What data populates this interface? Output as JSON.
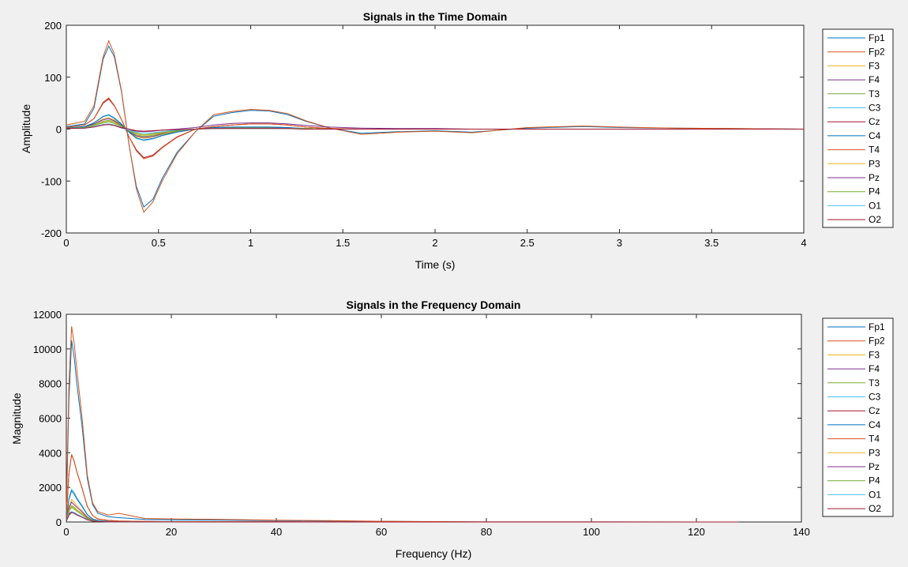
{
  "colors": {
    "background": "#f0f0f0",
    "axes_background": "#ffffff",
    "palette": [
      "#0072bd",
      "#d95319",
      "#edb120",
      "#7e2f8e",
      "#77ac30",
      "#4dbeee",
      "#a2142f"
    ]
  },
  "chart_data": [
    {
      "type": "line",
      "title": "Signals in the Time Domain",
      "xlabel": "Time (s)",
      "ylabel": "Amplitude",
      "xlim": [
        0,
        4
      ],
      "ylim": [
        -200,
        200
      ],
      "xticks": [
        0,
        0.5,
        1,
        1.5,
        2,
        2.5,
        3,
        3.5,
        4
      ],
      "yticks": [
        -200,
        -100,
        0,
        100,
        200
      ],
      "xtick_labels": [
        "0",
        "0.5",
        "1",
        "1.5",
        "2",
        "2.5",
        "3",
        "3.5",
        "4"
      ],
      "ytick_labels": [
        "-200",
        "-100",
        "0",
        "100",
        "200"
      ],
      "grid": false,
      "legend_position": "outside-right",
      "x": [
        0,
        0.1,
        0.15,
        0.2,
        0.23,
        0.26,
        0.3,
        0.34,
        0.38,
        0.42,
        0.47,
        0.52,
        0.6,
        0.7,
        0.8,
        0.9,
        1.0,
        1.1,
        1.2,
        1.3,
        1.43,
        1.6,
        1.8,
        2.0,
        2.2,
        2.5,
        2.8,
        3.0,
        3.3,
        3.6,
        4.0
      ],
      "series": [
        {
          "name": "Fp1",
          "color": "#0072bd",
          "values": [
            5,
            10,
            40,
            135,
            160,
            140,
            70,
            -30,
            -110,
            -150,
            -135,
            -95,
            -45,
            -5,
            25,
            32,
            36,
            35,
            28,
            15,
            2,
            -8,
            -5,
            -3,
            -6,
            2,
            5,
            3,
            2,
            1,
            0
          ]
        },
        {
          "name": "Fp2",
          "color": "#d95319",
          "values": [
            8,
            15,
            45,
            140,
            170,
            145,
            72,
            -30,
            -115,
            -160,
            -140,
            -100,
            -48,
            -5,
            28,
            34,
            38,
            36,
            30,
            16,
            2,
            -10,
            -6,
            -4,
            -7,
            3,
            6,
            4,
            2,
            1,
            0
          ]
        },
        {
          "name": "F3",
          "color": "#edb120",
          "values": [
            2,
            4,
            10,
            20,
            22,
            18,
            8,
            -5,
            -15,
            -18,
            -15,
            -10,
            -5,
            0,
            2,
            3,
            3,
            3,
            2,
            1,
            0,
            0,
            0,
            0,
            0,
            0,
            0,
            0,
            0,
            0,
            0
          ]
        },
        {
          "name": "F4",
          "color": "#7e2f8e",
          "values": [
            2,
            4,
            10,
            18,
            20,
            16,
            7,
            -5,
            -13,
            -16,
            -14,
            -9,
            -4,
            0,
            2,
            3,
            3,
            3,
            2,
            1,
            0,
            0,
            0,
            0,
            0,
            0,
            0,
            0,
            0,
            0,
            0
          ]
        },
        {
          "name": "T3",
          "color": "#77ac30",
          "values": [
            1,
            3,
            8,
            15,
            17,
            14,
            6,
            -4,
            -11,
            -14,
            -12,
            -8,
            -4,
            0,
            2,
            2,
            2,
            2,
            1,
            1,
            0,
            0,
            0,
            0,
            0,
            0,
            0,
            0,
            0,
            0,
            0
          ]
        },
        {
          "name": "C3",
          "color": "#4dbeee",
          "values": [
            2,
            5,
            12,
            25,
            28,
            22,
            10,
            -6,
            -18,
            -22,
            -19,
            -13,
            -6,
            0,
            3,
            4,
            4,
            4,
            3,
            1,
            0,
            0,
            0,
            0,
            0,
            0,
            0,
            0,
            0,
            0,
            0
          ]
        },
        {
          "name": "Cz",
          "color": "#a2142f",
          "values": [
            3,
            8,
            20,
            50,
            58,
            45,
            18,
            -15,
            -40,
            -55,
            -50,
            -35,
            -15,
            0,
            5,
            8,
            10,
            10,
            8,
            4,
            1,
            0,
            0,
            0,
            0,
            0,
            0,
            0,
            0,
            0,
            0
          ]
        },
        {
          "name": "C4",
          "color": "#0072bd",
          "values": [
            2,
            5,
            12,
            24,
            27,
            21,
            9,
            -6,
            -17,
            -21,
            -18,
            -12,
            -6,
            0,
            3,
            4,
            4,
            4,
            3,
            1,
            0,
            0,
            0,
            0,
            0,
            0,
            0,
            0,
            0,
            0,
            0
          ]
        },
        {
          "name": "T4",
          "color": "#d95319",
          "values": [
            3,
            8,
            20,
            52,
            60,
            46,
            18,
            -15,
            -42,
            -57,
            -52,
            -36,
            -16,
            0,
            5,
            8,
            10,
            10,
            8,
            4,
            1,
            0,
            0,
            0,
            0,
            0,
            0,
            0,
            0,
            0,
            0
          ]
        },
        {
          "name": "P3",
          "color": "#edb120",
          "values": [
            1,
            3,
            7,
            13,
            15,
            12,
            5,
            -3,
            -9,
            -12,
            -10,
            -7,
            -3,
            0,
            1,
            2,
            2,
            2,
            1,
            1,
            0,
            0,
            0,
            0,
            0,
            0,
            0,
            0,
            0,
            0,
            0
          ]
        },
        {
          "name": "Pz",
          "color": "#7e2f8e",
          "values": [
            1,
            2,
            5,
            8,
            9,
            7,
            2,
            -2,
            -4,
            -5,
            -4,
            -2,
            0,
            3,
            8,
            11,
            12,
            12,
            10,
            7,
            4,
            2,
            1,
            1,
            0,
            0,
            0,
            0,
            0,
            0,
            0
          ]
        },
        {
          "name": "P4",
          "color": "#77ac30",
          "values": [
            1,
            3,
            7,
            12,
            14,
            11,
            5,
            -3,
            -8,
            -11,
            -9,
            -6,
            -3,
            0,
            1,
            2,
            2,
            2,
            1,
            1,
            0,
            0,
            0,
            0,
            0,
            0,
            0,
            0,
            0,
            0,
            0
          ]
        },
        {
          "name": "O1",
          "color": "#4dbeee",
          "values": [
            1,
            2,
            5,
            9,
            10,
            8,
            3,
            -2,
            -6,
            -8,
            -7,
            -5,
            -2,
            0,
            1,
            1,
            1,
            1,
            1,
            0,
            0,
            0,
            0,
            0,
            0,
            0,
            0,
            0,
            0,
            0,
            0
          ]
        },
        {
          "name": "O2",
          "color": "#a2142f",
          "values": [
            1,
            2,
            4,
            8,
            9,
            7,
            3,
            0,
            -3,
            -4,
            -3,
            -2,
            -1,
            0,
            1,
            1,
            1,
            1,
            1,
            0,
            0,
            0,
            0,
            0,
            0,
            0,
            0,
            0,
            0,
            0,
            0
          ]
        }
      ]
    },
    {
      "type": "line",
      "title": "Signals in the Frequency Domain",
      "xlabel": "Frequency (Hz)",
      "ylabel": "Magnitude",
      "xlim": [
        0,
        140
      ],
      "ylim": [
        0,
        12000
      ],
      "xticks": [
        0,
        20,
        40,
        60,
        80,
        100,
        120,
        140
      ],
      "yticks": [
        0,
        2000,
        4000,
        6000,
        8000,
        10000,
        12000
      ],
      "xtick_labels": [
        "0",
        "20",
        "40",
        "60",
        "80",
        "100",
        "120",
        "140"
      ],
      "ytick_labels": [
        "0",
        "2000",
        "4000",
        "6000",
        "8000",
        "10000",
        "12000"
      ],
      "grid": false,
      "legend_position": "outside-right",
      "x": [
        0,
        0.5,
        1,
        1.5,
        2,
        3,
        4,
        5,
        6,
        8,
        10,
        15,
        20,
        30,
        40,
        50,
        60,
        80,
        100,
        128
      ],
      "series": [
        {
          "name": "Fp1",
          "color": "#0072bd",
          "values": [
            500,
            7000,
            10500,
            9500,
            8000,
            5500,
            2500,
            1000,
            500,
            300,
            250,
            150,
            120,
            100,
            80,
            60,
            30,
            5,
            3,
            2
          ]
        },
        {
          "name": "Fp2",
          "color": "#d95319",
          "values": [
            600,
            8000,
            11300,
            10300,
            8800,
            6000,
            2700,
            1100,
            600,
            400,
            500,
            200,
            180,
            150,
            100,
            80,
            40,
            5,
            3,
            2
          ]
        },
        {
          "name": "F3",
          "color": "#edb120",
          "values": [
            100,
            900,
            1300,
            1150,
            950,
            650,
            300,
            120,
            60,
            30,
            20,
            10,
            8,
            5,
            3,
            2,
            1,
            0,
            0,
            0
          ]
        },
        {
          "name": "F4",
          "color": "#7e2f8e",
          "values": [
            90,
            800,
            1150,
            1000,
            850,
            580,
            270,
            110,
            55,
            25,
            18,
            9,
            7,
            4,
            3,
            2,
            1,
            0,
            0,
            0
          ]
        },
        {
          "name": "T3",
          "color": "#77ac30",
          "values": [
            80,
            700,
            950,
            850,
            700,
            480,
            220,
            90,
            45,
            20,
            15,
            8,
            6,
            4,
            2,
            1,
            1,
            0,
            0,
            0
          ]
        },
        {
          "name": "C3",
          "color": "#4dbeee",
          "values": [
            120,
            1400,
            1900,
            1700,
            1400,
            950,
            440,
            180,
            90,
            40,
            30,
            15,
            10,
            6,
            4,
            3,
            1,
            0,
            0,
            0
          ]
        },
        {
          "name": "Cz",
          "color": "#a2142f",
          "values": [
            300,
            2800,
            3900,
            3500,
            2900,
            1950,
            900,
            370,
            180,
            90,
            60,
            30,
            20,
            12,
            8,
            5,
            2,
            0,
            0,
            0
          ]
        },
        {
          "name": "C4",
          "color": "#0072bd",
          "values": [
            115,
            1300,
            1800,
            1600,
            1330,
            900,
            420,
            170,
            85,
            38,
            28,
            14,
            10,
            6,
            4,
            3,
            1,
            0,
            0,
            0
          ]
        },
        {
          "name": "T4",
          "color": "#d95319",
          "values": [
            300,
            2800,
            3900,
            3500,
            2900,
            1950,
            900,
            370,
            180,
            90,
            60,
            30,
            20,
            12,
            8,
            5,
            2,
            0,
            0,
            0
          ]
        },
        {
          "name": "P3",
          "color": "#edb120",
          "values": [
            70,
            650,
            900,
            800,
            660,
            450,
            210,
            85,
            42,
            18,
            14,
            7,
            5,
            3,
            2,
            1,
            1,
            0,
            0,
            0
          ]
        },
        {
          "name": "Pz",
          "color": "#7e2f8e",
          "values": [
            200,
            500,
            600,
            550,
            450,
            300,
            150,
            60,
            30,
            15,
            10,
            6,
            5,
            3,
            2,
            1,
            1,
            0,
            0,
            0
          ]
        },
        {
          "name": "P4",
          "color": "#77ac30",
          "values": [
            65,
            600,
            850,
            750,
            620,
            420,
            200,
            80,
            40,
            17,
            13,
            7,
            5,
            3,
            2,
            1,
            1,
            0,
            0,
            0
          ]
        },
        {
          "name": "O1",
          "color": "#4dbeee",
          "values": [
            45,
            420,
            600,
            540,
            450,
            300,
            140,
            55,
            28,
            12,
            9,
            5,
            3,
            2,
            1,
            1,
            0,
            0,
            0,
            0
          ]
        },
        {
          "name": "O2",
          "color": "#a2142f",
          "values": [
            40,
            380,
            550,
            490,
            400,
            270,
            125,
            50,
            25,
            11,
            8,
            4,
            3,
            2,
            1,
            1,
            0,
            0,
            0,
            0
          ]
        }
      ]
    }
  ]
}
